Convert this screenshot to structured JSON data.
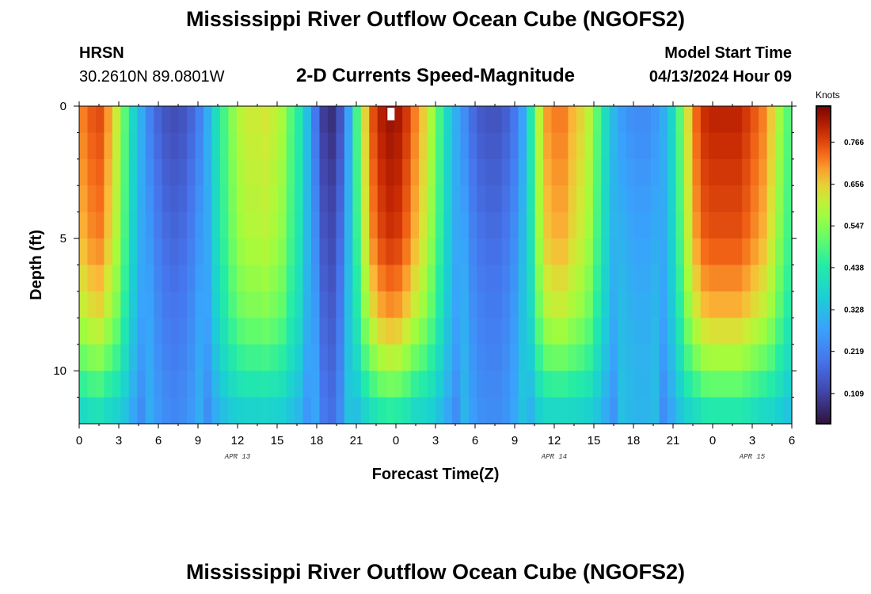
{
  "header": {
    "title": "Mississippi River Outflow Ocean Cube (NGOFS2)",
    "station": "HRSN",
    "coords": "30.2610N  89.0801W",
    "subtitle": "2-D Currents Speed-Magnitude",
    "start_label": "Model Start Time",
    "start_value": "04/13/2024 Hour 09"
  },
  "footer": {
    "title": "Mississippi River Outflow Ocean Cube (NGOFS2)"
  },
  "chart_data": {
    "type": "heatmap",
    "title": "2-D Currents Speed-Magnitude",
    "xlabel": "Forecast Time(Z)",
    "ylabel": "Depth (ft)",
    "xlim": [
      0,
      54
    ],
    "ylim": [
      0,
      12
    ],
    "x_ticks": [
      0,
      3,
      6,
      9,
      12,
      15,
      18,
      21,
      24,
      27,
      30,
      33,
      36,
      39,
      42,
      45,
      48,
      51,
      54
    ],
    "x_tick_labels": [
      "0",
      "3",
      "6",
      "9",
      "12",
      "15",
      "18",
      "21",
      "0",
      "3",
      "6",
      "9",
      "12",
      "15",
      "18",
      "21",
      "0",
      "3",
      "6"
    ],
    "y_ticks": [
      0,
      5,
      10
    ],
    "y_tick_labels": [
      "0",
      "5",
      "10"
    ],
    "date_labels": [
      {
        "text": "APR 13",
        "x": 12
      },
      {
        "text": "APR 14",
        "x": 36
      },
      {
        "text": "APR 15",
        "x": 51
      }
    ],
    "colorbar": {
      "label": "Knots",
      "range": [
        0.03,
        0.86
      ],
      "ticks": [
        0.109,
        0.219,
        0.328,
        0.438,
        0.547,
        0.656,
        0.766
      ],
      "tick_labels": [
        "0.109",
        "0.219",
        "0.328",
        "0.438",
        "0.547",
        "0.656",
        "0.766"
      ]
    },
    "time_step_hours": 1,
    "depth_levels": 12,
    "surface_speed_knots": [
      0.72,
      0.75,
      0.76,
      0.7,
      0.62,
      0.5,
      0.38,
      0.3,
      0.22,
      0.17,
      0.14,
      0.13,
      0.14,
      0.17,
      0.22,
      0.3,
      0.4,
      0.48,
      0.55,
      0.6,
      0.62,
      0.62,
      0.63,
      0.61,
      0.58,
      0.5,
      0.44,
      0.33,
      0.2,
      0.1,
      0.08,
      0.14,
      0.28,
      0.48,
      0.65,
      0.76,
      0.81,
      0.83,
      0.82,
      0.78,
      0.72,
      0.66,
      0.58,
      0.48,
      0.38,
      0.3,
      0.24,
      0.18,
      0.15,
      0.14,
      0.14,
      0.16,
      0.2,
      0.28,
      0.43,
      0.6,
      0.7,
      0.72,
      0.72,
      0.68,
      0.65,
      0.6,
      0.5,
      0.4,
      0.32,
      0.27,
      0.25,
      0.24,
      0.24,
      0.26,
      0.3,
      0.38,
      0.5,
      0.64,
      0.74,
      0.79,
      0.8,
      0.8,
      0.8,
      0.8,
      0.78,
      0.75,
      0.72,
      0.66,
      0.57,
      0.5
    ],
    "depth_profile_factor": [
      1.0,
      0.99,
      0.98,
      0.97,
      0.96,
      0.94,
      0.91,
      0.88,
      0.83,
      0.77,
      0.7,
      0.62
    ],
    "annotations": [
      {
        "type": "marker",
        "x": 23.6,
        "depth": 0.3,
        "color": "#ffffff"
      }
    ]
  }
}
